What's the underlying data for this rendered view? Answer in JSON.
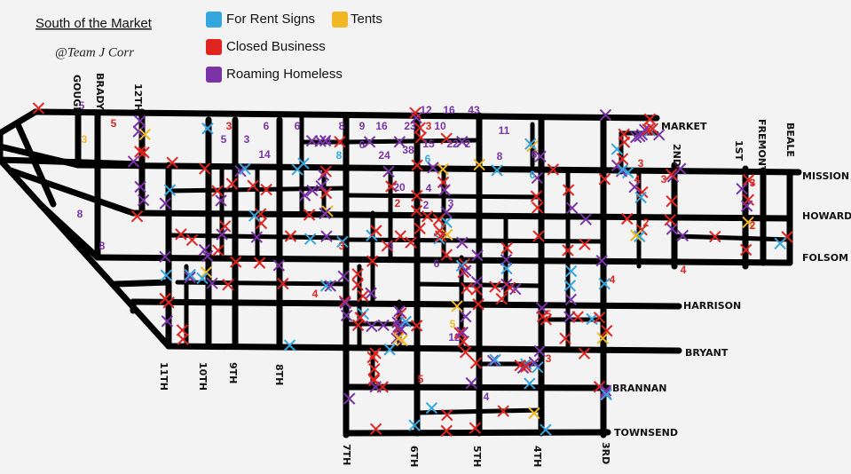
{
  "header": {
    "title": "South of the Market",
    "signature": "@Team J Corr"
  },
  "legend": [
    {
      "label": "For Rent Signs",
      "color": "#35a7df",
      "counts": [
        6,
        6,
        8
      ]
    },
    {
      "label": "Tents",
      "color": "#f1b724",
      "counts": [
        3,
        5
      ]
    },
    {
      "label": "Closed Business",
      "color": "#e0241f",
      "counts": [
        5,
        3,
        3,
        3,
        4,
        3,
        3,
        2,
        2,
        3,
        4,
        4,
        4,
        5,
        3,
        5,
        2
      ]
    },
    {
      "label": "Roaming Homeless",
      "color": "#7b34a8",
      "counts": [
        5,
        6,
        6,
        8,
        9,
        16,
        23,
        10,
        11,
        12,
        16,
        43,
        5,
        4,
        6,
        24,
        38,
        15,
        22,
        2,
        8,
        3,
        14,
        8,
        8,
        20,
        4,
        3,
        2,
        3,
        6,
        4,
        12,
        6
      ]
    }
  ],
  "streets": [
    "MARKET",
    "MISSION",
    "HOWARD",
    "FOLSOM",
    "HARRISON",
    "BRYANT",
    "BRANNAN",
    "TOWNSEND",
    "GOUGH",
    "BRADY",
    "12TH",
    "11TH",
    "10TH",
    "9TH",
    "8TH",
    "7TH",
    "6TH",
    "5TH",
    "4TH",
    "3RD",
    "2ND",
    "1ST",
    "FREMONT",
    "BEALE"
  ]
}
